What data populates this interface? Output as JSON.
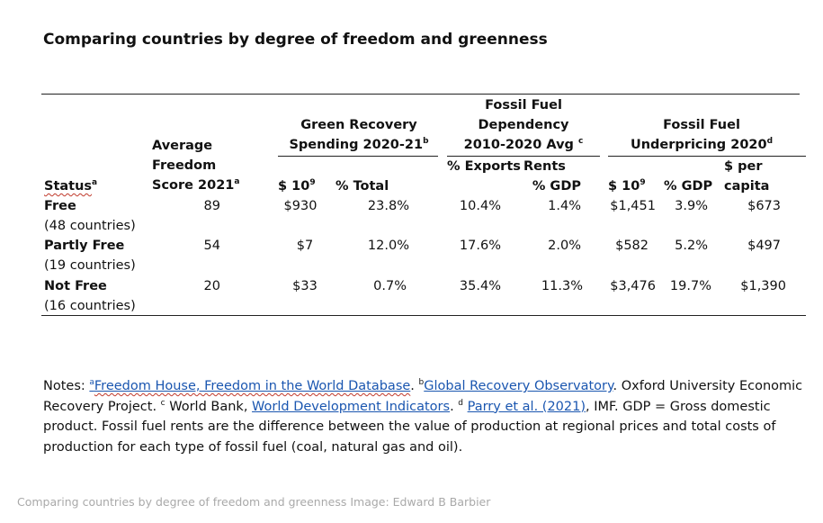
{
  "title": "Comparing countries by degree of freedom and greenness",
  "headers": {
    "status": "Status",
    "status_sup": "a",
    "freedom_l1": "Average",
    "freedom_l2": "Freedom",
    "freedom_l3": "Score 2021",
    "freedom_sup": "a",
    "green_l1": "Green Recovery",
    "green_l2": "Spending 2020-21",
    "green_sup": "b",
    "fossil_dep_l1": "Fossil Fuel",
    "fossil_dep_l2": "Dependency",
    "fossil_dep_l3": "2010-2020 Avg",
    "fossil_dep_sup": "c",
    "fossil_up_l1": "Fossil Fuel",
    "fossil_up_l2": "Underpricing 2020",
    "fossil_up_sup": "d",
    "green_usd": "$ 10",
    "green_usd_exp": "9",
    "green_pct": "% Total",
    "exports": "% Exports",
    "rents_l1": "Rents",
    "rents_l2": "% GDP",
    "up_usd": "$ 10",
    "up_usd_exp": "9",
    "up_gdp": "% GDP",
    "up_pc_l1": "$ per",
    "up_pc_l2": "capita"
  },
  "rows": [
    {
      "status": "Free",
      "count": "(48 countries)",
      "score": "89",
      "green_usd": "$930",
      "green_pct": "23.8%",
      "exports": "10.4%",
      "rents": "1.4%",
      "up_usd": "$1,451",
      "up_gdp": "3.9%",
      "up_pc": "$673"
    },
    {
      "status": "Partly Free",
      "count": "(19 countries)",
      "score": "54",
      "green_usd": "$7",
      "green_pct": "12.0%",
      "exports": "17.6%",
      "rents": "2.0%",
      "up_usd": "$582",
      "up_gdp": "5.2%",
      "up_pc": "$497"
    },
    {
      "status": "Not Free",
      "count": "(16 countries)",
      "score": "20",
      "green_usd": "$33",
      "green_pct": "0.7%",
      "exports": "35.4%",
      "rents": "11.3%",
      "up_usd": "$3,476",
      "up_gdp": "19.7%",
      "up_pc": "$1,390"
    }
  ],
  "notes": {
    "prefix": "Notes: ",
    "a_sup": "a",
    "a_link": "Freedom House, Freedom in the World Database",
    "a_after": ". ",
    "b_sup": "b",
    "b_link": "Global Recovery Observatory",
    "b_after": ". Oxford University Economic Recovery Project. ",
    "c_sup": "c",
    "c_before": " World Bank, ",
    "c_link": "World Development Indicators",
    "c_after": ". ",
    "d_sup": "d",
    "d_link": "Parry et al. (2021)",
    "d_after": ", IMF. GDP = Gross domestic product. Fossil fuel rents are the difference between the value of production at regional prices and total costs of production for each type of fossil fuel (coal, natural gas and oil)."
  },
  "caption": "Comparing countries by degree of freedom and greenness Image: Edward B Barbier"
}
